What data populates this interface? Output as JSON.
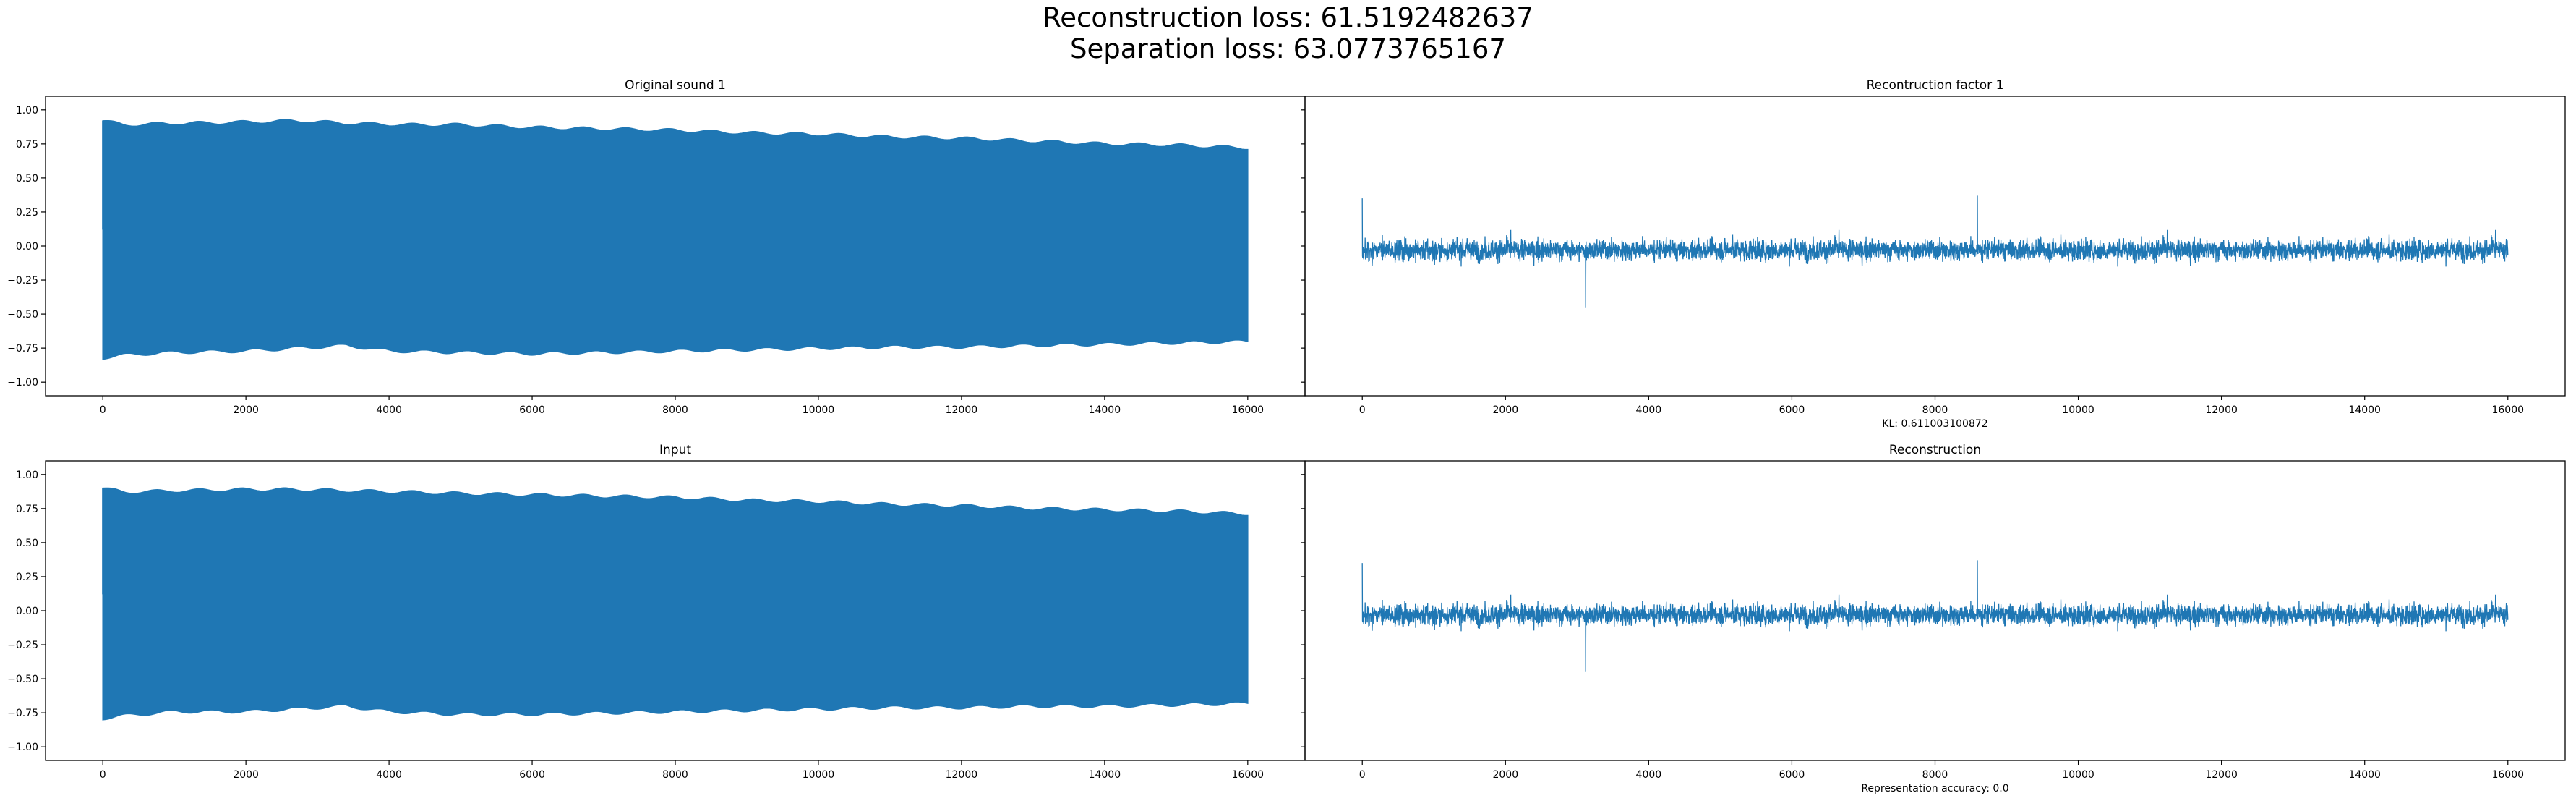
{
  "figure": {
    "suptitle_lines": [
      "Reconstruction loss: 61.5192482637",
      "Separation loss: 63.0773765167"
    ],
    "colors": {
      "series": "#1f77b4",
      "axes": "#000000",
      "background": "#ffffff"
    }
  },
  "chart_data": [
    {
      "type": "line",
      "title": "Original sound 1",
      "xlabel": "",
      "ylabel": "",
      "xlim": [
        -800,
        16800
      ],
      "ylim": [
        -1.1,
        1.1
      ],
      "xticks": [
        0,
        2000,
        4000,
        6000,
        8000,
        10000,
        12000,
        14000,
        16000
      ],
      "yticks": [
        1.0,
        0.75,
        0.5,
        0.25,
        0.0,
        -0.25,
        -0.5,
        -0.75,
        -1.0
      ],
      "ytick_labels": [
        "1.00",
        "0.75",
        "0.50",
        "0.25",
        "0.00",
        "−0.25",
        "−0.50",
        "−0.75",
        "−1.00"
      ],
      "series": [
        {
          "kind": "dense_oscillation",
          "x_range": [
            0,
            16000
          ],
          "upper_envelope": [
            [
              0,
              0.92
            ],
            [
              300,
              0.89
            ],
            [
              1000,
              0.9
            ],
            [
              2000,
              0.91
            ],
            [
              2700,
              0.92
            ],
            [
              3500,
              0.9
            ],
            [
              4300,
              0.89
            ],
            [
              5000,
              0.89
            ],
            [
              6000,
              0.87
            ],
            [
              7000,
              0.86
            ],
            [
              8000,
              0.85
            ],
            [
              9000,
              0.83
            ],
            [
              10000,
              0.82
            ],
            [
              11000,
              0.8
            ],
            [
              12000,
              0.79
            ],
            [
              13000,
              0.77
            ],
            [
              14000,
              0.75
            ],
            [
              15000,
              0.74
            ],
            [
              16000,
              0.72
            ]
          ],
          "lower_envelope": [
            [
              0,
              -0.82
            ],
            [
              300,
              -0.8
            ],
            [
              1000,
              -0.78
            ],
            [
              2000,
              -0.77
            ],
            [
              3400,
              -0.73
            ],
            [
              4000,
              -0.77
            ],
            [
              5000,
              -0.78
            ],
            [
              6000,
              -0.79
            ],
            [
              7000,
              -0.78
            ],
            [
              8000,
              -0.77
            ],
            [
              9000,
              -0.76
            ],
            [
              10000,
              -0.75
            ],
            [
              11000,
              -0.74
            ],
            [
              12000,
              -0.74
            ],
            [
              13000,
              -0.73
            ],
            [
              14000,
              -0.72
            ],
            [
              15000,
              -0.71
            ],
            [
              16000,
              -0.7
            ]
          ]
        }
      ]
    },
    {
      "type": "line",
      "title": "Recontruction factor 1",
      "xlabel": "KL: 0.611003100872",
      "ylabel": "",
      "xlim": [
        -800,
        16800
      ],
      "ylim": [
        -1.1,
        1.1
      ],
      "xticks": [
        0,
        2000,
        4000,
        6000,
        8000,
        10000,
        12000,
        14000,
        16000
      ],
      "series": [
        {
          "kind": "noise",
          "x_range": [
            0,
            16000
          ],
          "mean": -0.03,
          "amplitude": 0.12,
          "max_value": 0.37,
          "min_value": -0.45
        }
      ]
    },
    {
      "type": "line",
      "title": "Input",
      "xlabel": "",
      "ylabel": "",
      "xlim": [
        -800,
        16800
      ],
      "ylim": [
        -1.1,
        1.1
      ],
      "xticks": [
        0,
        2000,
        4000,
        6000,
        8000,
        10000,
        12000,
        14000,
        16000
      ],
      "yticks": [
        1.0,
        0.75,
        0.5,
        0.25,
        0.0,
        -0.25,
        -0.5,
        -0.75,
        -1.0
      ],
      "ytick_labels": [
        "1.00",
        "0.75",
        "0.50",
        "0.25",
        "0.00",
        "−0.25",
        "−0.50",
        "−0.75",
        "−1.00"
      ],
      "series": [
        {
          "kind": "dense_oscillation",
          "x_range": [
            0,
            16000
          ],
          "upper_envelope": [
            [
              0,
              0.9
            ],
            [
              300,
              0.87
            ],
            [
              1000,
              0.88
            ],
            [
              2000,
              0.89
            ],
            [
              2700,
              0.89
            ],
            [
              3500,
              0.88
            ],
            [
              4300,
              0.87
            ],
            [
              5000,
              0.86
            ],
            [
              6000,
              0.85
            ],
            [
              7000,
              0.84
            ],
            [
              8000,
              0.83
            ],
            [
              9000,
              0.81
            ],
            [
              10000,
              0.8
            ],
            [
              11000,
              0.78
            ],
            [
              12000,
              0.77
            ],
            [
              13000,
              0.75
            ],
            [
              14000,
              0.74
            ],
            [
              15000,
              0.73
            ],
            [
              16000,
              0.71
            ]
          ],
          "lower_envelope": [
            [
              0,
              -0.79
            ],
            [
              300,
              -0.77
            ],
            [
              1000,
              -0.74
            ],
            [
              2000,
              -0.74
            ],
            [
              3400,
              -0.7
            ],
            [
              4000,
              -0.74
            ],
            [
              5000,
              -0.76
            ],
            [
              6000,
              -0.76
            ],
            [
              7000,
              -0.75
            ],
            [
              8000,
              -0.74
            ],
            [
              9000,
              -0.73
            ],
            [
              10000,
              -0.72
            ],
            [
              11000,
              -0.71
            ],
            [
              12000,
              -0.71
            ],
            [
              13000,
              -0.7
            ],
            [
              14000,
              -0.7
            ],
            [
              15000,
              -0.69
            ],
            [
              16000,
              -0.68
            ]
          ]
        }
      ]
    },
    {
      "type": "line",
      "title": "Reconstruction",
      "xlabel": "Representation accuracy: 0.0",
      "ylabel": "",
      "xlim": [
        -800,
        16800
      ],
      "ylim": [
        -1.1,
        1.1
      ],
      "xticks": [
        0,
        2000,
        4000,
        6000,
        8000,
        10000,
        12000,
        14000,
        16000
      ],
      "series": [
        {
          "kind": "noise",
          "x_range": [
            0,
            16000
          ],
          "mean": -0.03,
          "amplitude": 0.12,
          "max_value": 0.37,
          "min_value": -0.45
        }
      ]
    }
  ]
}
